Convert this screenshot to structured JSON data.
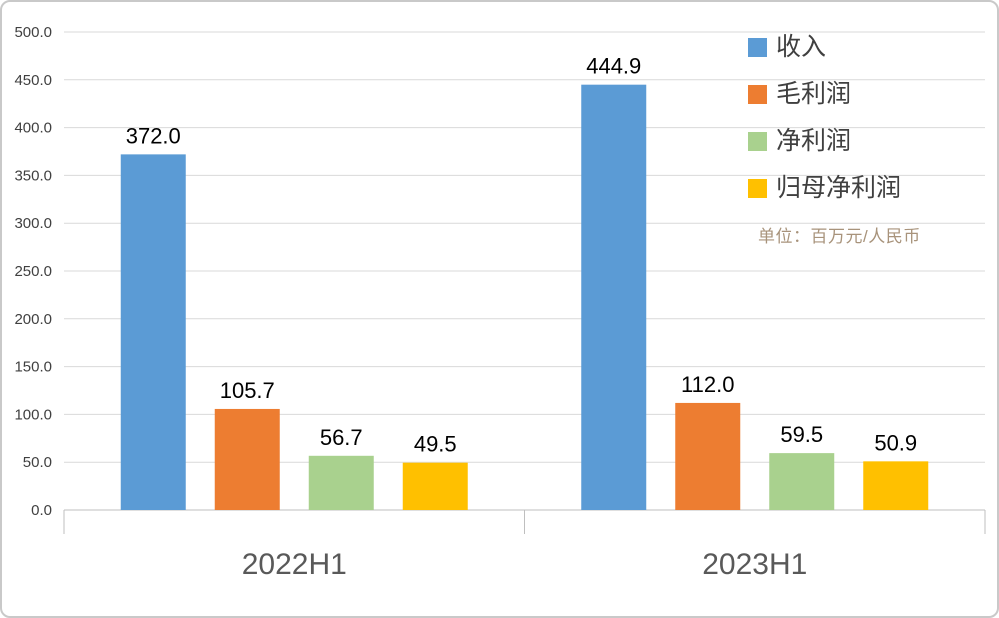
{
  "chart_data": {
    "type": "bar",
    "categories": [
      "2022H1",
      "2023H1"
    ],
    "series": [
      {
        "name": "收入",
        "color": "#5B9BD5",
        "values": [
          372.0,
          444.9
        ]
      },
      {
        "name": "毛利润",
        "color": "#ED7D31",
        "values": [
          105.7,
          112.0
        ]
      },
      {
        "name": "净利润",
        "color": "#A9D18E",
        "values": [
          56.7,
          59.5
        ]
      },
      {
        "name": "归母净利润",
        "color": "#FFC000",
        "values": [
          49.5,
          50.9
        ]
      }
    ],
    "title": "",
    "xlabel": "",
    "ylabel": "",
    "ylim": [
      0,
      500
    ],
    "ytick_step": 50,
    "ytick_decimals": 1,
    "value_label_decimals": 1,
    "grid": true,
    "legend_position": "top-right",
    "unit_note": "单位：百万元/人民币",
    "colors": {
      "grid_line": "#D9D9D9",
      "axis_line": "#BFBFBF",
      "tick_label": "#404040",
      "value_label": "#000000",
      "category_label": "#595959",
      "legend_label": "#404040",
      "unit_note": "#A8937B"
    }
  }
}
